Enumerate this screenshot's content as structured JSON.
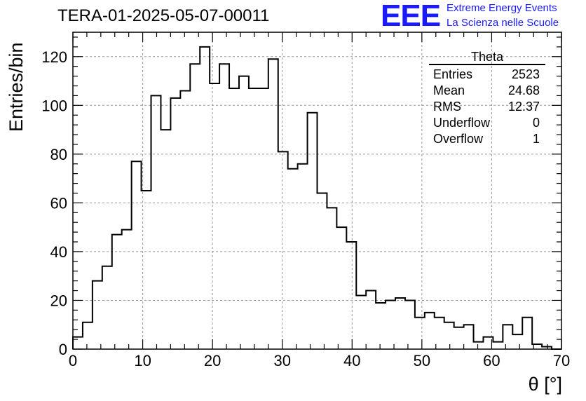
{
  "title": "TERA-01-2025-05-07-00011",
  "logo": {
    "mark": "EEE",
    "line1": "Extreme Energy Events",
    "line2": "La Scienza nelle Scuole",
    "color": "#1a1aff"
  },
  "stats": {
    "name": "Theta",
    "rows": [
      {
        "label": "Entries",
        "value": "2523"
      },
      {
        "label": "Mean",
        "value": "24.68"
      },
      {
        "label": "RMS",
        "value": "12.37"
      },
      {
        "label": "Underflow",
        "value": "0"
      },
      {
        "label": "Overflow",
        "value": "1"
      }
    ]
  },
  "chart_data": {
    "type": "bar",
    "title": "TERA-01-2025-05-07-00011",
    "xlabel": "θ [°]",
    "ylabel": "Entries/bin",
    "xlim": [
      0,
      70
    ],
    "ylim": [
      0,
      130
    ],
    "bin_width": 1.4,
    "x_ticks": [
      0,
      10,
      20,
      30,
      40,
      50,
      60,
      70
    ],
    "y_ticks": [
      0,
      20,
      40,
      60,
      80,
      100,
      120
    ],
    "grid": true,
    "values": [
      5,
      11,
      28,
      34,
      47,
      49,
      77,
      65,
      104,
      90,
      103,
      106,
      117,
      124,
      109,
      117,
      107,
      112,
      107,
      107,
      119,
      81,
      74,
      76,
      97,
      64,
      58,
      50,
      44,
      22,
      24,
      19,
      20,
      21,
      20,
      13,
      15,
      13,
      11,
      9,
      10,
      3,
      5,
      3,
      10,
      6,
      13,
      2,
      1,
      0
    ]
  }
}
